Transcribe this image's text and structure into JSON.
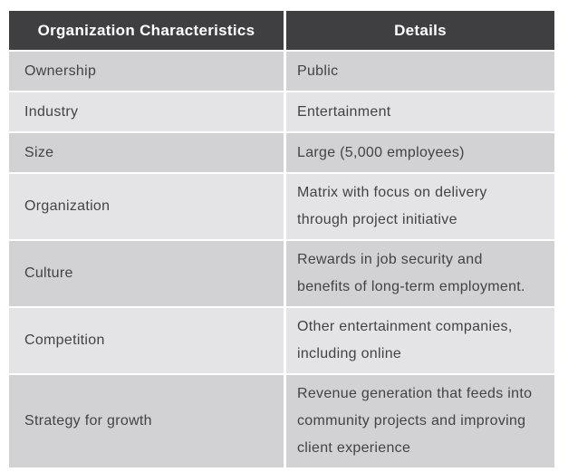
{
  "table": {
    "columns": [
      {
        "label": "Organization Characteristics"
      },
      {
        "label": "Details"
      }
    ],
    "rows": [
      {
        "characteristic": "Ownership",
        "detail": "Public"
      },
      {
        "characteristic": "Industry",
        "detail": "Entertainment"
      },
      {
        "characteristic": "Size",
        "detail": "Large (5,000 employees)"
      },
      {
        "characteristic": "Organization",
        "detail": "Matrix with focus on delivery through project initiative"
      },
      {
        "characteristic": "Culture",
        "detail": "Rewards in job security and benefits of long-term employment."
      },
      {
        "characteristic": "Competition",
        "detail": "Other entertainment companies, including online"
      },
      {
        "characteristic": "Strategy for growth",
        "detail": "Revenue generation that feeds into community projects and improving client experience"
      }
    ],
    "colors": {
      "header_bg": "#3f3f41",
      "header_text": "#ffffff",
      "row_dark_bg": "#d2d2d4",
      "row_light_bg": "#e4e4e6",
      "cell_text": "#434345",
      "grid_line": "#ffffff",
      "page_bg": "#ffffff"
    }
  }
}
